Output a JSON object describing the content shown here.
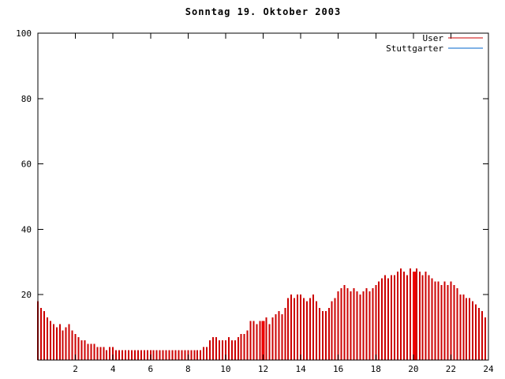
{
  "title": "Sonntag 19. Oktober 2003",
  "chart_data": {
    "type": "bar",
    "style": "impulses",
    "title": "Sonntag 19. Oktober 2003",
    "xlabel": "",
    "ylabel": "",
    "xlim": [
      0,
      24
    ],
    "ylim": [
      0,
      100
    ],
    "x_ticks": [
      2,
      4,
      6,
      8,
      10,
      12,
      14,
      16,
      18,
      20,
      22,
      24
    ],
    "y_ticks": [
      20,
      40,
      60,
      80,
      100
    ],
    "legend_position": "top-right",
    "grid": false,
    "x_unit": "hour-of-day",
    "x_step_minutes": 10,
    "series": [
      {
        "name": "User",
        "color": "#cc0000",
        "values": [
          18,
          16,
          15,
          13,
          12,
          11,
          10,
          11,
          9,
          10,
          11,
          9,
          8,
          7,
          6,
          6,
          5,
          5,
          5,
          4,
          4,
          4,
          3,
          4,
          4,
          3,
          3,
          3,
          3,
          3,
          3,
          3,
          3,
          3,
          3,
          3,
          3,
          3,
          3,
          3,
          3,
          3,
          3,
          3,
          3,
          3,
          3,
          3,
          3,
          3,
          3,
          3,
          3,
          4,
          4,
          6,
          7,
          7,
          6,
          6,
          6,
          7,
          6,
          6,
          7,
          8,
          8,
          9,
          12,
          12,
          11,
          12,
          12,
          13,
          11,
          13,
          14,
          15,
          14,
          16,
          19,
          20,
          19,
          20,
          20,
          19,
          18,
          19,
          20,
          18,
          16,
          15,
          15,
          16,
          18,
          19,
          21,
          22,
          23,
          22,
          21,
          22,
          21,
          20,
          21,
          22,
          21,
          22,
          23,
          24,
          25,
          26,
          25,
          26,
          26,
          27,
          28,
          27,
          26,
          28,
          27,
          28,
          27,
          26,
          27,
          26,
          25,
          24,
          24,
          23,
          24,
          23,
          24,
          23,
          22,
          20,
          20,
          19,
          19,
          18,
          17,
          16,
          15,
          13
        ]
      },
      {
        "name": "Stuttgarter",
        "color": "#0066cc",
        "values": []
      }
    ],
    "solid_spikes": [
      {
        "x": 12.0,
        "value": 12
      },
      {
        "x": 20.05,
        "value": 27
      }
    ]
  }
}
